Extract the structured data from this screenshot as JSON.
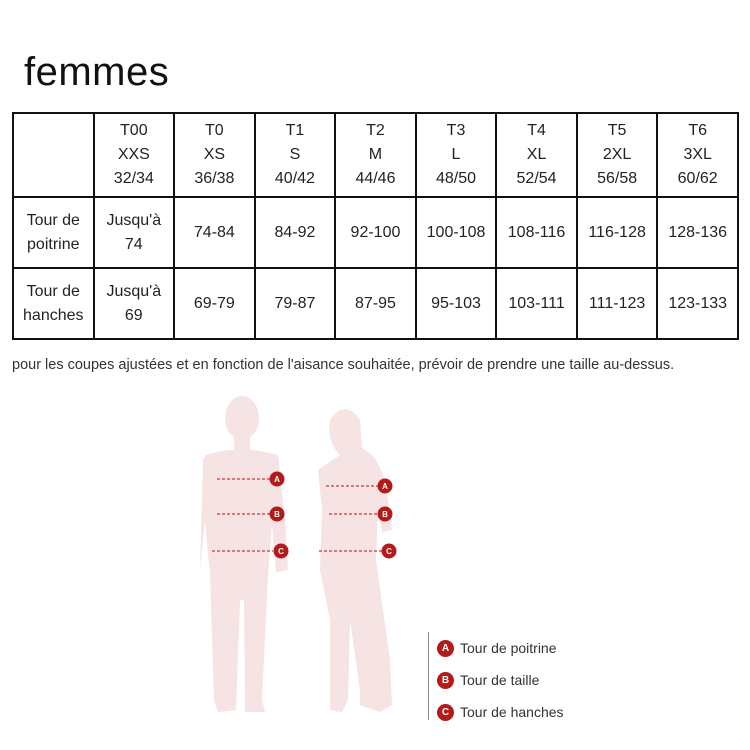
{
  "title": "femmes",
  "table": {
    "columns": [
      {
        "size": "T00",
        "letter": "XXS",
        "fr": "32/34"
      },
      {
        "size": "T0",
        "letter": "XS",
        "fr": "36/38"
      },
      {
        "size": "T1",
        "letter": "S",
        "fr": "40/42"
      },
      {
        "size": "T2",
        "letter": "M",
        "fr": "44/46"
      },
      {
        "size": "T3",
        "letter": "L",
        "fr": "48/50"
      },
      {
        "size": "T4",
        "letter": "XL",
        "fr": "52/54"
      },
      {
        "size": "T5",
        "letter": "2XL",
        "fr": "56/58"
      },
      {
        "size": "T6",
        "letter": "3XL",
        "fr": "60/62"
      }
    ],
    "rows": [
      {
        "label_l1": "Tour de",
        "label_l2": "poitrine",
        "values": [
          "Jusqu'à 74",
          "74-84",
          "84-92",
          "92-100",
          "100-108",
          "108-116",
          "116-128",
          "128-136"
        ]
      },
      {
        "label_l1": "Tour de",
        "label_l2": "hanches",
        "values": [
          "Jusqu'à 69",
          "69-79",
          "79-87",
          "87-95",
          "95-103",
          "103-111",
          "111-123",
          "123-133"
        ]
      }
    ]
  },
  "note": "pour les coupes ajustées et en fonction de l'aisance souhaitée, prévoir de prendre une taille au-dessus.",
  "markers": [
    "A",
    "B",
    "C"
  ],
  "legend": [
    {
      "letter": "A",
      "label": "Tour de poitrine"
    },
    {
      "letter": "B",
      "label": "Tour de taille"
    },
    {
      "letter": "C",
      "label": "Tour de hanches"
    }
  ],
  "colors": {
    "silhouette": "#f6e3e3",
    "marker": "#b31b1b"
  }
}
